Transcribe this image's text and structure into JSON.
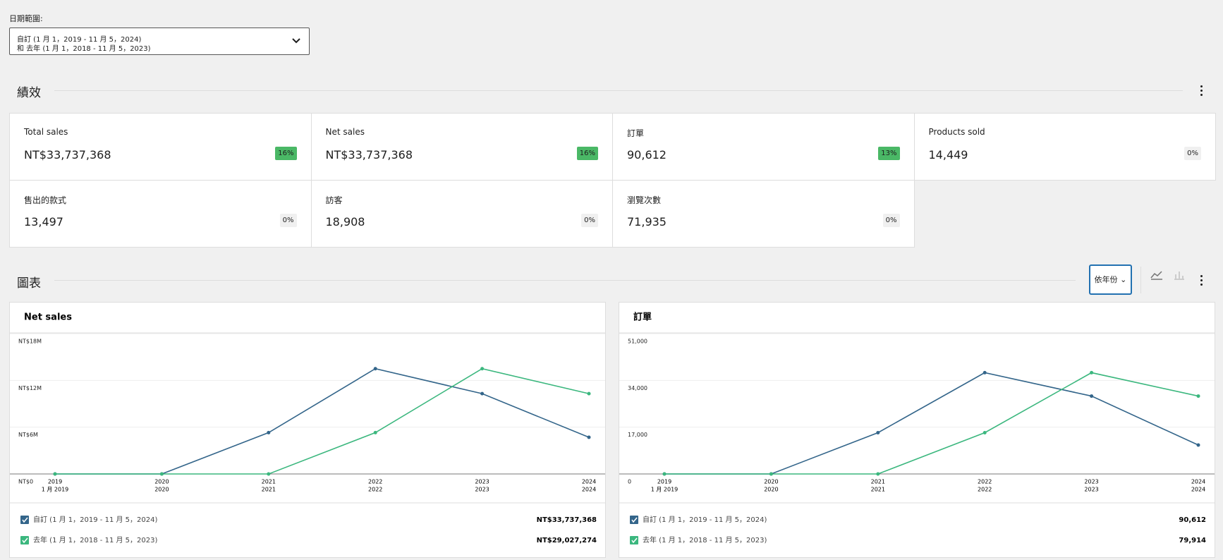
{
  "date_range": {
    "label": "日期範圍:",
    "line1": "自訂 (1 月 1，2019 - 11 月 5，2024)",
    "line2": "和 去年 (1 月 1，2018 - 11 月 5，2023)"
  },
  "performance": {
    "title": "績效",
    "cards": [
      {
        "label": "Total sales",
        "value": "NT$33,737,368",
        "delta": "16%",
        "delta_color": "#4ab866"
      },
      {
        "label": "Net sales",
        "value": "NT$33,737,368",
        "delta": "16%",
        "delta_color": "#4ab866"
      },
      {
        "label": "訂單",
        "value": "90,612",
        "delta": "13%",
        "delta_color": "#4ab866"
      },
      {
        "label": "Products sold",
        "value": "14,449",
        "delta": "0%",
        "delta_color": "#f0f0f0"
      },
      {
        "label": "售出的款式",
        "value": "13,497",
        "delta": "0%",
        "delta_color": "#f0f0f0"
      },
      {
        "label": "訪客",
        "value": "18,908",
        "delta": "0%",
        "delta_color": "#f0f0f0"
      },
      {
        "label": "瀏覽次數",
        "value": "71,935",
        "delta": "0%",
        "delta_color": "#f0f0f0"
      }
    ]
  },
  "charts_section": {
    "title": "圖表",
    "interval": "依年份"
  },
  "chart_data": [
    {
      "type": "line",
      "title": "Net sales",
      "categories": [
        "2019",
        "2020",
        "2021",
        "2022",
        "2023",
        "2024"
      ],
      "categories_second_line": [
        "1 月 2019",
        "2020",
        "2021",
        "2022",
        "2023",
        "2024"
      ],
      "ylim": [
        0,
        18000000
      ],
      "yticks": [
        {
          "value": 0,
          "label": "NT$0"
        },
        {
          "value": 6000000,
          "label": "NT$6M"
        },
        {
          "value": 12000000,
          "label": "NT$12M"
        },
        {
          "value": 18000000,
          "label": "NT$18M"
        }
      ],
      "grid": true,
      "series": [
        {
          "name": "自訂 (1 月 1，2019 - 11 月 5，2024)",
          "color": "#33658a",
          "total": "NT$33,737,368",
          "values": [
            0,
            0,
            5300000,
            13500000,
            10300000,
            4700000
          ]
        },
        {
          "name": "去年 (1 月 1，2018 - 11 月 5，2023)",
          "color": "#3bb77e",
          "total": "NT$29,027,274",
          "values": [
            0,
            0,
            0,
            5300000,
            13500000,
            10300000
          ]
        }
      ]
    },
    {
      "type": "line",
      "title": "訂單",
      "categories": [
        "2019",
        "2020",
        "2021",
        "2022",
        "2023",
        "2024"
      ],
      "categories_second_line": [
        "1 月 2019",
        "2020",
        "2021",
        "2022",
        "2023",
        "2024"
      ],
      "ylim": [
        0,
        51000
      ],
      "yticks": [
        0,
        {
          "value": 17000,
          "label": "17,000"
        },
        {
          "value": 34000,
          "label": "34,000"
        },
        {
          "value": 51000,
          "label": "51,000"
        }
      ],
      "grid": true,
      "series": [
        {
          "name": "自訂 (1 月 1，2019 - 11 月 5，2024)",
          "color": "#33658a",
          "total": "90,612",
          "values": [
            0,
            0,
            15000,
            36800,
            28300,
            10500
          ]
        },
        {
          "name": "去年 (1 月 1，2018 - 11 月 5，2023)",
          "color": "#3bb77e",
          "total": "79,914",
          "values": [
            0,
            0,
            0,
            15000,
            36800,
            28300
          ]
        }
      ]
    }
  ]
}
